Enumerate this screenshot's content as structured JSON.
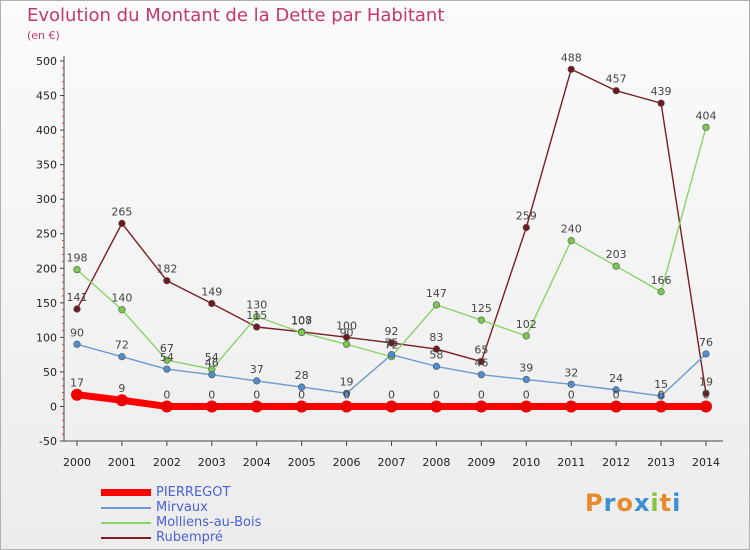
{
  "header": {
    "title": "Evolution du Montant de la Dette par Habitant",
    "subtitle": "(en €)"
  },
  "logo": {
    "text": "Proxiti",
    "letter_colors": [
      "#e8892a",
      "#3c8fd1",
      "#e8892a",
      "#3c8fd1",
      "#88c23d",
      "#e8892a",
      "#3c8fd1"
    ]
  },
  "chart_data": {
    "type": "line",
    "x": [
      "2000",
      "2001",
      "2002",
      "2003",
      "2004",
      "2005",
      "2006",
      "2007",
      "2008",
      "2009",
      "2010",
      "2011",
      "2012",
      "2013",
      "2014"
    ],
    "ylim": [
      -50,
      500
    ],
    "yticks": [
      "-50",
      "0",
      "50",
      "100",
      "150",
      "200",
      "250",
      "300",
      "350",
      "400",
      "450",
      "500"
    ],
    "grid": false,
    "legend_position": "bottom-left",
    "series": [
      {
        "name": "Rubempré",
        "color": "#7a1e22",
        "marker": "#6e1a1e",
        "values": [
          141,
          265,
          182,
          149,
          115,
          108,
          100,
          92,
          83,
          65,
          259,
          488,
          457,
          439,
          19
        ],
        "labels": [
          "141",
          "265",
          "182",
          "149",
          "115",
          "108",
          "100",
          "92",
          "83",
          "65",
          "259",
          "488",
          "457",
          "439",
          "19"
        ]
      },
      {
        "name": "Molliens-au-Bois",
        "color": "#88d468",
        "marker": "#7ac94f",
        "values": [
          198,
          140,
          67,
          54,
          130,
          107,
          90,
          72,
          147,
          125,
          102,
          240,
          203,
          166,
          404
        ],
        "labels": [
          "198",
          "140",
          "67",
          "54",
          "130",
          "107",
          "90",
          "72",
          "147",
          "125",
          "102",
          "240",
          "203",
          "166",
          "404"
        ]
      },
      {
        "name": "Mirvaux",
        "color": "#6a9bd0",
        "marker": "#4f8cd0",
        "values": [
          90,
          72,
          54,
          46,
          37,
          28,
          19,
          75,
          58,
          46,
          39,
          32,
          24,
          15,
          76
        ],
        "labels": [
          "90",
          "72",
          "54",
          "46",
          "37",
          "28",
          "19",
          "75",
          "58",
          "46",
          "39",
          "32",
          "24",
          "15",
          "76"
        ]
      },
      {
        "name": "PIERREGOT",
        "color": "#ff0000",
        "marker": "#ee0000",
        "values": [
          17,
          9,
          0,
          0,
          0,
          0,
          0,
          0,
          0,
          0,
          0,
          0,
          0,
          0,
          0
        ],
        "labels": [
          "17",
          "9",
          "0",
          "0",
          "0",
          "0",
          "0",
          "0",
          "0",
          "0",
          "0",
          "0",
          "0",
          "0",
          "0"
        ]
      }
    ],
    "legend_order": [
      "PIERREGOT",
      "Mirvaux",
      "Molliens-au-Bois",
      "Rubempré"
    ]
  }
}
